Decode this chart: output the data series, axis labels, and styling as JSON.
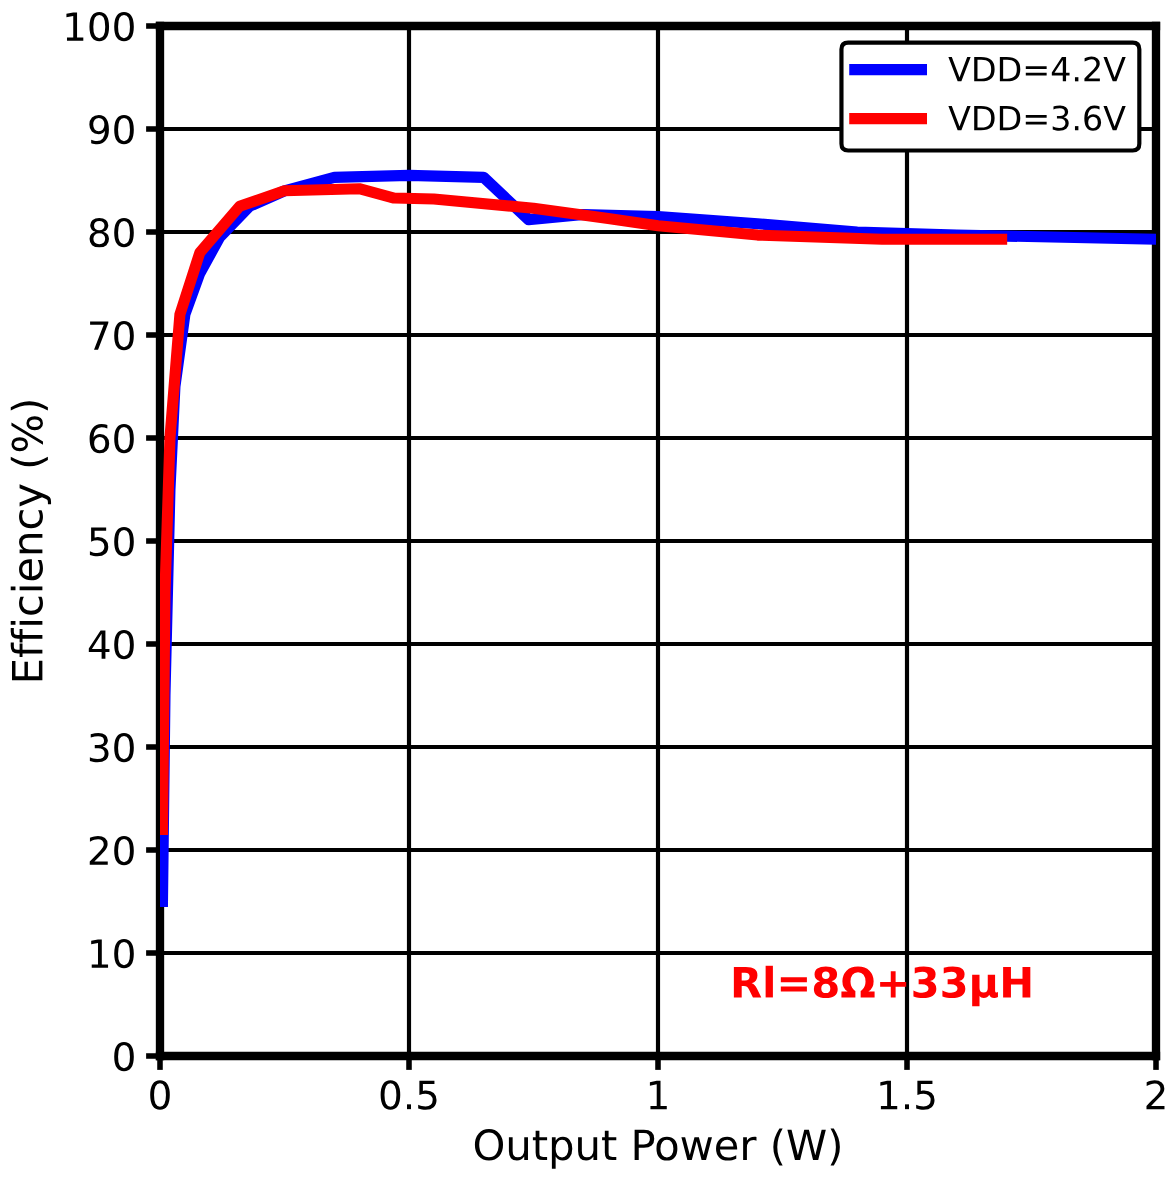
{
  "chart_data": {
    "type": "line",
    "xlabel": "Output Power (W)",
    "ylabel": "Efficiency (%)",
    "xlim": [
      0,
      2
    ],
    "xticks": [
      0,
      0.5,
      1,
      1.5,
      2
    ],
    "ylim": [
      0,
      100
    ],
    "yticks": [
      0,
      10,
      20,
      30,
      40,
      50,
      60,
      70,
      80,
      90,
      100
    ],
    "grid": true,
    "legend": "top right",
    "line_style": "solid",
    "marker": "none",
    "annotations": [
      "Rl=8Ω+33µH"
    ],
    "series": [
      {
        "name": "VDD=4.2V",
        "color": "#0000ff",
        "x": [
          0.005,
          0.01,
          0.02,
          0.03,
          0.05,
          0.08,
          0.12,
          0.18,
          0.25,
          0.35,
          0.5,
          0.65,
          0.74,
          0.85,
          1.0,
          1.2,
          1.4,
          1.6,
          2.0
        ],
        "values": [
          15,
          35,
          55,
          65,
          72,
          76,
          79.5,
          82.5,
          84,
          85.3,
          85.5,
          85.3,
          81.2,
          81.7,
          81.5,
          80.8,
          80,
          79.7,
          79.3
        ]
      },
      {
        "name": "VDD=3.6V",
        "color": "#ff0000",
        "x": [
          0.005,
          0.01,
          0.02,
          0.04,
          0.08,
          0.16,
          0.25,
          0.4,
          0.47,
          0.55,
          0.75,
          0.9,
          1.0,
          1.2,
          1.45,
          1.69
        ],
        "values": [
          22,
          45,
          60,
          72,
          78,
          82.5,
          84,
          84.2,
          83.3,
          83.2,
          82.3,
          81.3,
          80.6,
          79.7,
          79.3,
          79.3
        ]
      }
    ]
  }
}
